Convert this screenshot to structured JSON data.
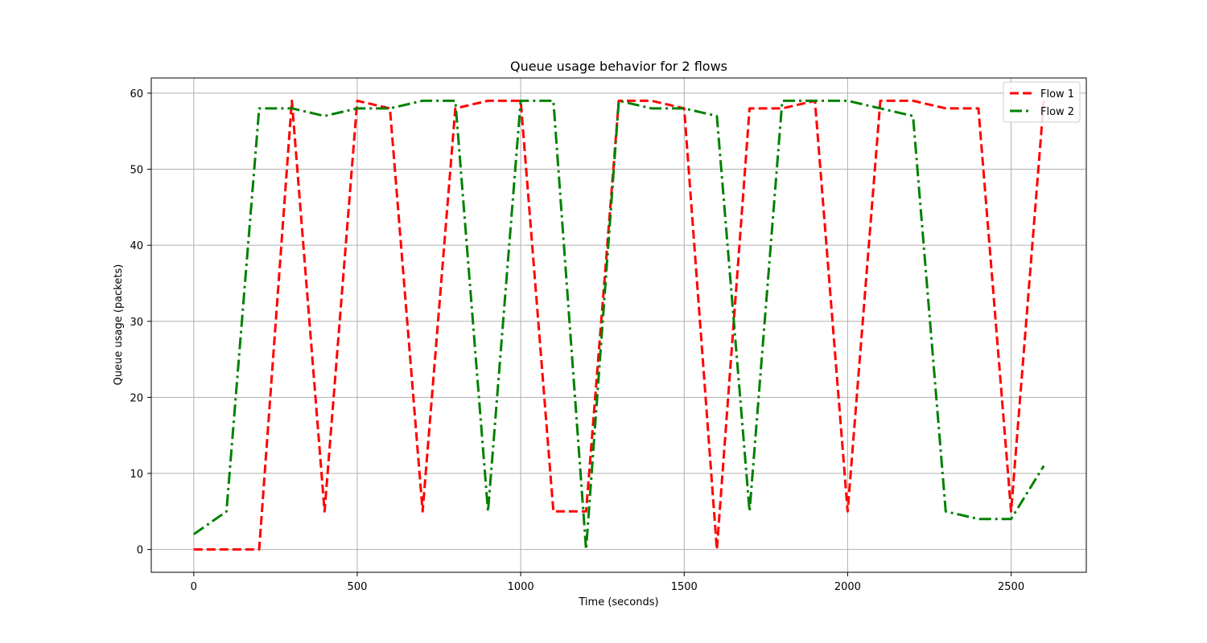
{
  "chart_data": {
    "type": "line",
    "title": "Queue usage behavior for 2 flows",
    "xlabel": "Time (seconds)",
    "ylabel": "Queue usage (packets)",
    "xlim": [
      -130,
      2730
    ],
    "ylim": [
      -3,
      62
    ],
    "x_ticks": [
      0,
      500,
      1000,
      1500,
      2000,
      2500
    ],
    "y_ticks": [
      0,
      10,
      20,
      30,
      40,
      50,
      60
    ],
    "grid": true,
    "legend_position": "top-right",
    "series": [
      {
        "name": "Flow 1",
        "color": "#ff0000",
        "line_style": "dashed",
        "x": [
          0,
          100,
          200,
          300,
          400,
          500,
          600,
          700,
          800,
          900,
          1000,
          1100,
          1200,
          1300,
          1400,
          1500,
          1600,
          1700,
          1800,
          1900,
          2000,
          2100,
          2200,
          2300,
          2400,
          2500,
          2600
        ],
        "y": [
          0,
          0,
          0,
          59,
          5,
          59,
          58,
          5,
          58,
          59,
          59,
          5,
          5,
          59,
          59,
          58,
          0,
          58,
          58,
          59,
          5,
          59,
          59,
          58,
          58,
          5,
          59
        ]
      },
      {
        "name": "Flow 2",
        "color": "#008000",
        "line_style": "dashdot",
        "x": [
          0,
          100,
          200,
          300,
          400,
          500,
          600,
          700,
          800,
          900,
          1000,
          1100,
          1200,
          1300,
          1400,
          1500,
          1600,
          1700,
          1800,
          1900,
          2000,
          2100,
          2200,
          2300,
          2400,
          2500,
          2600
        ],
        "y": [
          2,
          5,
          58,
          58,
          57,
          58,
          58,
          59,
          59,
          5,
          59,
          59,
          0,
          59,
          58,
          58,
          57,
          5,
          59,
          59,
          59,
          58,
          57,
          5,
          4,
          4,
          11
        ]
      }
    ]
  }
}
